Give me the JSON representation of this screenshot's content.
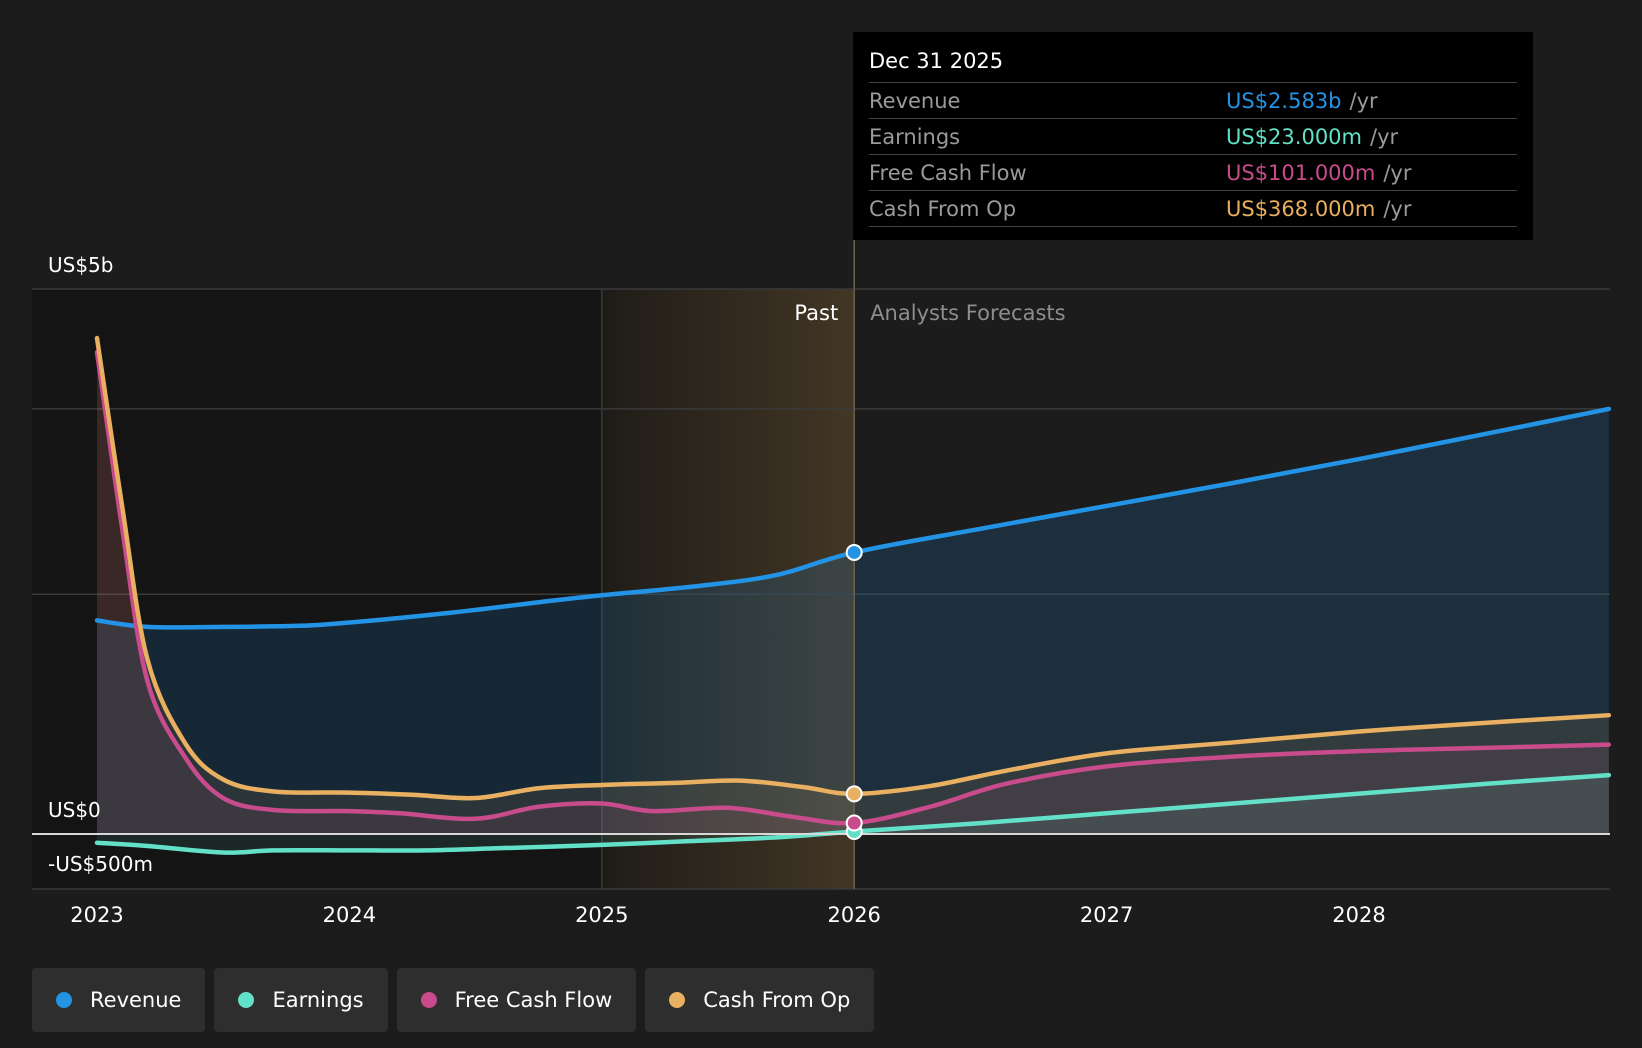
{
  "chart_data": {
    "type": "area",
    "y_ticks": [
      {
        "value": 5000,
        "label": "US$5b"
      },
      {
        "value": 0,
        "label": "US$0"
      },
      {
        "value": -500,
        "label": "-US$500m"
      }
    ],
    "ylim": [
      -500,
      5000
    ],
    "x_ticks": [
      "2023",
      "2024",
      "2025",
      "2026",
      "2027",
      "2028"
    ],
    "xlim": [
      2022.75,
      2028.99
    ],
    "divider_x": 2026.0,
    "highlight_start": 2025.0,
    "past_label": "Past",
    "forecast_label": "Analysts Forecasts",
    "series": [
      {
        "name": "Revenue",
        "color": "#2394e5",
        "points": [
          [
            2023.0,
            1960
          ],
          [
            2023.2,
            1900
          ],
          [
            2023.5,
            1900
          ],
          [
            2023.8,
            1910
          ],
          [
            2024.0,
            1940
          ],
          [
            2024.4,
            2030
          ],
          [
            2024.8,
            2140
          ],
          [
            2025.0,
            2190
          ],
          [
            2025.4,
            2280
          ],
          [
            2025.7,
            2380
          ],
          [
            2026.0,
            2583
          ],
          [
            2026.5,
            2800
          ],
          [
            2027.0,
            3010
          ],
          [
            2027.5,
            3220
          ],
          [
            2028.0,
            3440
          ],
          [
            2028.5,
            3670
          ],
          [
            2028.99,
            3900
          ]
        ]
      },
      {
        "name": "Earnings",
        "color": "#63e0c8",
        "points": [
          [
            2023.0,
            -80
          ],
          [
            2023.2,
            -110
          ],
          [
            2023.5,
            -170
          ],
          [
            2023.7,
            -150
          ],
          [
            2024.0,
            -150
          ],
          [
            2024.3,
            -150
          ],
          [
            2024.6,
            -130
          ],
          [
            2025.0,
            -100
          ],
          [
            2025.3,
            -70
          ],
          [
            2025.7,
            -30
          ],
          [
            2026.0,
            23
          ],
          [
            2026.5,
            100
          ],
          [
            2027.0,
            190
          ],
          [
            2027.5,
            280
          ],
          [
            2028.0,
            370
          ],
          [
            2028.5,
            460
          ],
          [
            2028.99,
            540
          ]
        ]
      },
      {
        "name": "Free Cash Flow",
        "color": "#c84b8c",
        "points": [
          [
            2023.0,
            4420
          ],
          [
            2023.1,
            2800
          ],
          [
            2023.2,
            1400
          ],
          [
            2023.35,
            700
          ],
          [
            2023.5,
            330
          ],
          [
            2023.7,
            220
          ],
          [
            2024.0,
            210
          ],
          [
            2024.2,
            190
          ],
          [
            2024.5,
            140
          ],
          [
            2024.75,
            250
          ],
          [
            2025.0,
            280
          ],
          [
            2025.2,
            210
          ],
          [
            2025.5,
            240
          ],
          [
            2025.75,
            160
          ],
          [
            2026.0,
            101
          ],
          [
            2026.3,
            250
          ],
          [
            2026.6,
            460
          ],
          [
            2027.0,
            620
          ],
          [
            2027.5,
            710
          ],
          [
            2028.0,
            760
          ],
          [
            2028.5,
            790
          ],
          [
            2028.99,
            820
          ]
        ]
      },
      {
        "name": "Cash From Op",
        "color": "#e8b060",
        "points": [
          [
            2023.0,
            4550
          ],
          [
            2023.1,
            3000
          ],
          [
            2023.2,
            1600
          ],
          [
            2023.35,
            830
          ],
          [
            2023.5,
            500
          ],
          [
            2023.7,
            390
          ],
          [
            2024.0,
            380
          ],
          [
            2024.25,
            360
          ],
          [
            2024.5,
            330
          ],
          [
            2024.75,
            420
          ],
          [
            2025.0,
            450
          ],
          [
            2025.3,
            470
          ],
          [
            2025.55,
            490
          ],
          [
            2025.8,
            430
          ],
          [
            2026.0,
            368
          ],
          [
            2026.3,
            440
          ],
          [
            2026.6,
            580
          ],
          [
            2027.0,
            740
          ],
          [
            2027.5,
            840
          ],
          [
            2028.0,
            940
          ],
          [
            2028.5,
            1020
          ],
          [
            2028.99,
            1090
          ]
        ]
      }
    ],
    "tooltip": {
      "date": "Dec 31 2025",
      "rows": [
        {
          "name": "Revenue",
          "value": "US$2.583b",
          "unit": "/yr",
          "color": "#2394e5"
        },
        {
          "name": "Earnings",
          "value": "US$23.000m",
          "unit": "/yr",
          "color": "#63e0c8"
        },
        {
          "name": "Free Cash Flow",
          "value": "US$101.000m",
          "unit": "/yr",
          "color": "#c84b8c"
        },
        {
          "name": "Cash From Op",
          "value": "US$368.000m",
          "unit": "/yr",
          "color": "#e8b060"
        }
      ]
    },
    "legend": [
      {
        "name": "Revenue",
        "color": "#2394e5"
      },
      {
        "name": "Earnings",
        "color": "#63e0c8"
      },
      {
        "name": "Free Cash Flow",
        "color": "#c84b8c"
      },
      {
        "name": "Cash From Op",
        "color": "#e8b060"
      }
    ]
  }
}
